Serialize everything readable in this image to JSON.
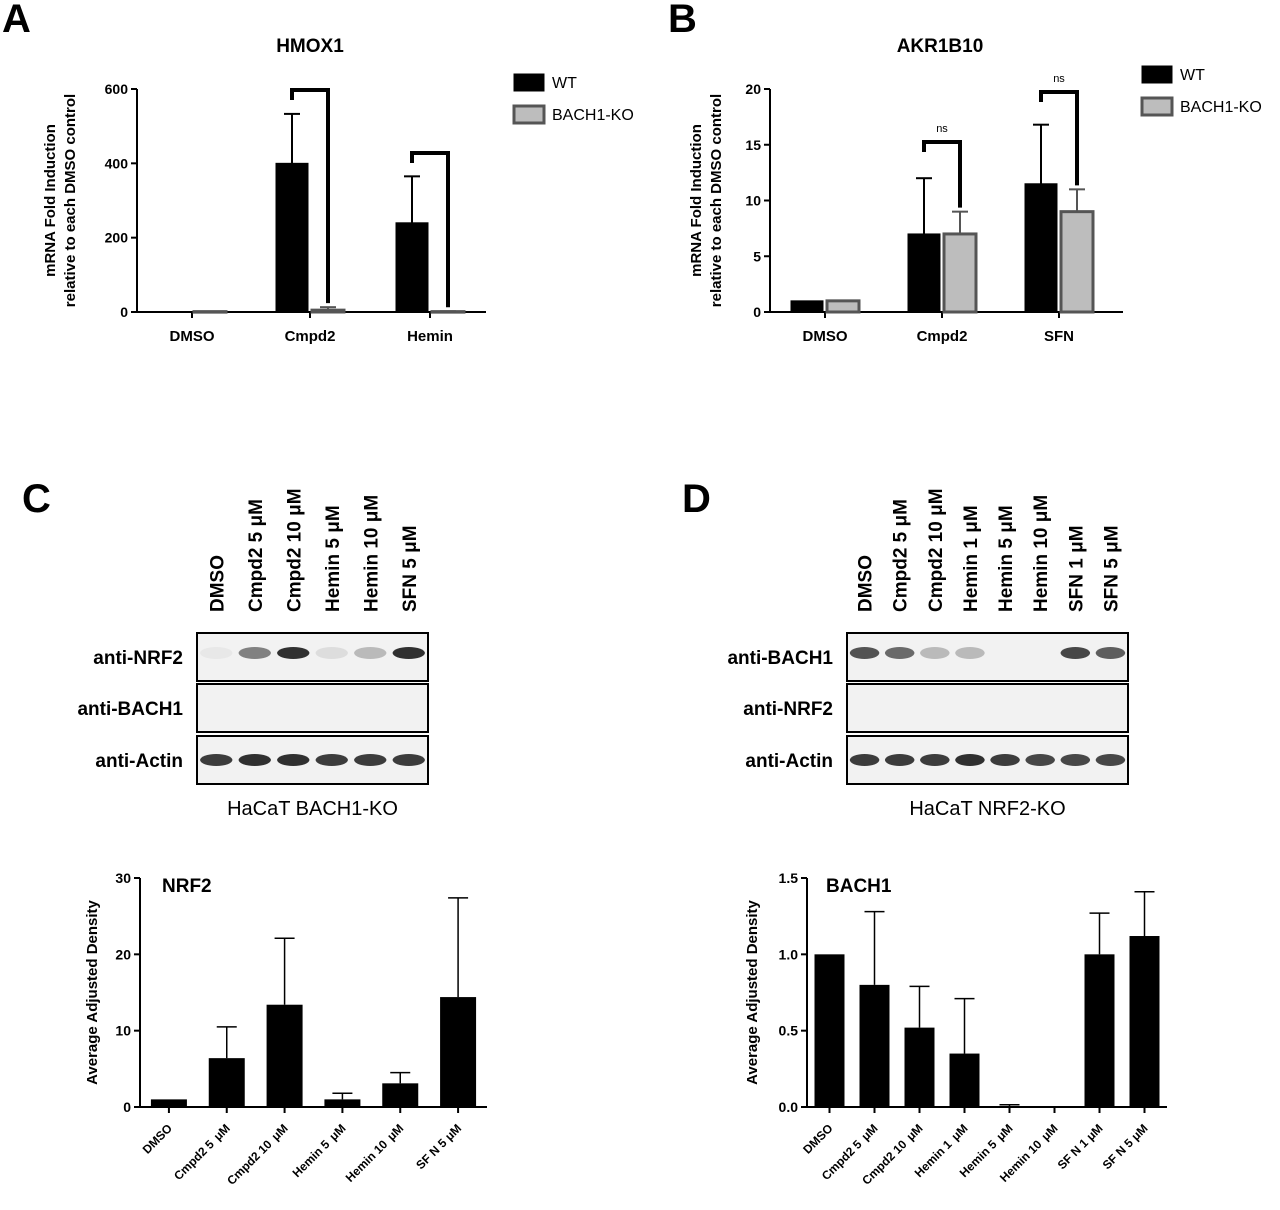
{
  "panels": {
    "A": "A",
    "B": "B",
    "C": "C",
    "D": "D"
  },
  "chart_data": [
    {
      "type": "bar",
      "panel": "A",
      "title": "HMOX1",
      "ylabel": [
        "mRNA Fold Induction",
        "relative to each  DMSO control"
      ],
      "categories": [
        "DMSO",
        "Cmpd2",
        "Hemin"
      ],
      "ylim": [
        0,
        600
      ],
      "yticks": [
        "0",
        "200",
        "400",
        "600"
      ],
      "series": [
        {
          "name": "WT",
          "color": "#000000",
          "values": [
            1,
            400,
            240
          ],
          "errors": [
            0,
            133,
            125
          ]
        },
        {
          "name": "BACH1-KO",
          "color": "#bdbdbd",
          "values": [
            1,
            5,
            1
          ],
          "errors": [
            0,
            8,
            1
          ]
        }
      ],
      "brackets": [
        {
          "category": 1,
          "label": ""
        },
        {
          "category": 2,
          "label": ""
        }
      ],
      "legend": "top-right"
    },
    {
      "type": "bar",
      "panel": "B",
      "title": "AKR1B10",
      "ylabel": [
        "mRNA Fold Induction",
        "relative to each DMSO control"
      ],
      "categories": [
        "DMSO",
        "Cmpd2",
        "SFN"
      ],
      "ylim": [
        0,
        20
      ],
      "yticks": [
        "0",
        "5",
        "10",
        "15",
        "20"
      ],
      "series": [
        {
          "name": "WT",
          "color": "#000000",
          "values": [
            1,
            7,
            11.5
          ],
          "errors": [
            0,
            5,
            5.3
          ]
        },
        {
          "name": "BACH1-KO",
          "color": "#bdbdbd",
          "values": [
            1,
            7,
            9
          ],
          "errors": [
            0,
            2,
            2
          ]
        }
      ],
      "brackets": [
        {
          "category": 1,
          "label": "ns"
        },
        {
          "category": 2,
          "label": "ns"
        }
      ],
      "legend": "top-right"
    },
    {
      "type": "bar",
      "panel": "C",
      "title": "NRF2",
      "ylabel": "Average Adjusted Density",
      "categories": [
        "DMSO",
        "Cmpd2 5 μM",
        "Cmpd2 10 μM",
        "Hemin 5 μM",
        "Hemin 10 μM",
        "SF N 5 μM"
      ],
      "category_lines": [
        [
          "DMSO"
        ],
        [
          "Cmpd2 5",
          "μM"
        ],
        [
          "Cmpd2 10",
          "μM"
        ],
        [
          "Hemin 5",
          "μM"
        ],
        [
          "Hemin 10",
          "μM"
        ],
        [
          "SF N 5 μM"
        ]
      ],
      "ylim": [
        0,
        30
      ],
      "yticks": [
        "0",
        "10",
        "20",
        "30"
      ],
      "values": [
        1,
        6.4,
        13.4,
        1,
        3.1,
        14.4
      ],
      "errors": [
        0,
        4.1,
        8.7,
        0.8,
        1.4,
        13
      ],
      "color": "#000000"
    },
    {
      "type": "bar",
      "panel": "D",
      "title": "BACH1",
      "ylabel": "Average Adjusted Density",
      "categories": [
        "DMSO",
        "Cmpd2 5 μM",
        "Cmpd2 10 μM",
        "Hemin 1 μM",
        "Hemin 5 μM",
        "Hemin 10 μM",
        "SF N 1 μM",
        "SF N 5 μM"
      ],
      "category_lines": [
        [
          "DMSO"
        ],
        [
          "Cmpd2 5",
          "μM"
        ],
        [
          "Cmpd2 10",
          "μM"
        ],
        [
          "Hemin 1",
          "μM"
        ],
        [
          "Hemin 5",
          "μM"
        ],
        [
          "Hemin 10",
          "μM"
        ],
        [
          "SF N 1 μM"
        ],
        [
          "SF N 5 μM"
        ]
      ],
      "ylim": [
        0,
        1.5
      ],
      "yticks": [
        "0.0",
        "0.5",
        "1.0",
        "1.5"
      ],
      "values": [
        1.0,
        0.8,
        0.52,
        0.35,
        0.005,
        0,
        1.0,
        1.12
      ],
      "errors": [
        0,
        0.48,
        0.27,
        0.36,
        0.01,
        0,
        0.27,
        0.29
      ],
      "color": "#000000"
    }
  ],
  "blots": {
    "C": {
      "lanes": [
        "DMSO",
        "Cmpd2 5 μM",
        "Cmpd2 10 μM",
        "Hemin 5 μM",
        "Hemin 10 μM",
        "SFN 5 μM"
      ],
      "rows": [
        "anti-NRF2",
        "anti-BACH1",
        "anti-Actin"
      ],
      "caption": "HaCaT BACH1-KO",
      "band_intensity": [
        [
          0.1,
          0.55,
          0.9,
          0.15,
          0.3,
          0.9
        ],
        [
          0,
          0,
          0,
          0,
          0,
          0
        ],
        [
          0.85,
          0.9,
          0.9,
          0.85,
          0.85,
          0.85
        ]
      ]
    },
    "D": {
      "lanes": [
        "DMSO",
        "Cmpd2 5 μM",
        "Cmpd2 10 μM",
        "Hemin 1 μM",
        "Hemin 5 μM",
        "Hemin 10 μM",
        "SFN 1 μM",
        "SFN 5 μM"
      ],
      "rows": [
        "anti-BACH1",
        "anti-NRF2",
        "anti-Actin"
      ],
      "caption": "HaCaT NRF2-KO",
      "band_intensity": [
        [
          0.75,
          0.65,
          0.3,
          0.3,
          0,
          0,
          0.8,
          0.7
        ],
        [
          0,
          0,
          0,
          0,
          0,
          0,
          0,
          0
        ],
        [
          0.85,
          0.85,
          0.85,
          0.9,
          0.85,
          0.8,
          0.8,
          0.8
        ]
      ]
    }
  }
}
